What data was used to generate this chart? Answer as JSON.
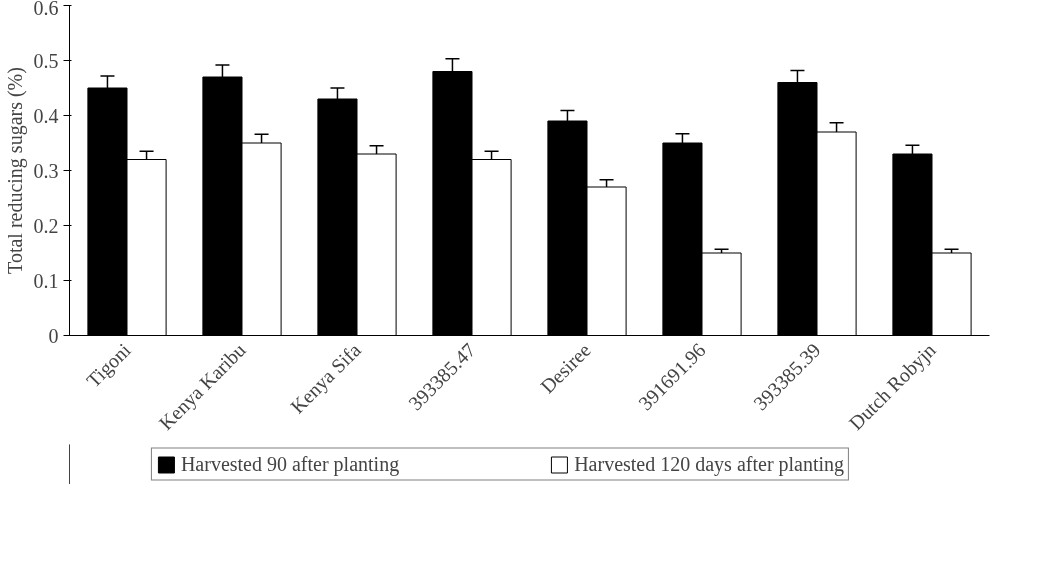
{
  "chart_data": {
    "type": "bar",
    "ylabel": "Total reducing sugars (%)",
    "categories": [
      "Tigoni",
      "Kenya Karibu",
      "Kenya Sifa",
      "393385.47",
      "Desiree",
      "391691.96",
      "393385.39",
      "Dutch Robyjn"
    ],
    "series": [
      {
        "name": "Harvested 90 after planting",
        "color": "#000000",
        "values": [
          0.45,
          0.47,
          0.43,
          0.48,
          0.39,
          0.35,
          0.46,
          0.33
        ],
        "errors": [
          0.022,
          0.022,
          0.02,
          0.023,
          0.019,
          0.017,
          0.022,
          0.016
        ]
      },
      {
        "name": "Harvested 120 days after planting",
        "color": "#ffffff",
        "values": [
          0.32,
          0.35,
          0.33,
          0.32,
          0.27,
          0.15,
          0.37,
          0.15
        ],
        "errors": [
          0.015,
          0.016,
          0.015,
          0.015,
          0.013,
          0.007,
          0.017,
          0.007
        ]
      }
    ],
    "ylim": [
      0,
      0.6
    ],
    "yticks": [
      0,
      0.1,
      0.2,
      0.3,
      0.4,
      0.5,
      0.6
    ],
    "grid": false,
    "legend": "bottom"
  }
}
